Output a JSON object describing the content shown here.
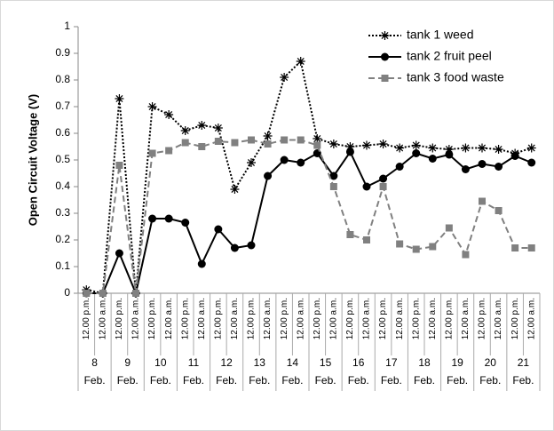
{
  "chart_data": {
    "type": "line",
    "y_label": "Open Circuit Voltage (V)",
    "categories": [
      "12.00 p.m.",
      "12.00 a.m.",
      "12.00 p.m.",
      "12.00 a.m.",
      "12.00 p.m.",
      "12.00 a.m.",
      "12.00 p.m.",
      "12.00 a.m.",
      "12.00 p.m.",
      "12.00 a.m.",
      "12.00 p.m.",
      "12.00 a.m.",
      "12.00 p.m.",
      "12.00 a.m.",
      "12.00 p.m.",
      "12.00 a.m.",
      "12.00 p.m.",
      "12.00 a.m.",
      "12.00 p.m.",
      "12.00 a.m.",
      "12.00 p.m.",
      "12.00 a.m.",
      "12.00 p.m.",
      "12.00 a.m.",
      "12.00 p.m.",
      "12.00 a.m.",
      "12.00 p.m.",
      "12.00 a.m."
    ],
    "groups": [
      {
        "day": "8",
        "month": "Feb."
      },
      {
        "day": "9",
        "month": "Feb."
      },
      {
        "day": "10",
        "month": "Feb."
      },
      {
        "day": "11",
        "month": "Feb."
      },
      {
        "day": "12",
        "month": "Feb."
      },
      {
        "day": "13",
        "month": "Feb."
      },
      {
        "day": "14",
        "month": "Feb."
      },
      {
        "day": "15",
        "month": "Feb."
      },
      {
        "day": "16",
        "month": "Feb."
      },
      {
        "day": "17",
        "month": "Feb."
      },
      {
        "day": "18",
        "month": "Feb."
      },
      {
        "day": "19",
        "month": "Feb."
      },
      {
        "day": "20",
        "month": "Feb."
      },
      {
        "day": "21",
        "month": "Feb."
      }
    ],
    "series": [
      {
        "name": "tank 1  weed",
        "color": "#000000",
        "dash": "dotted",
        "marker": "asterisk",
        "values": [
          0.013,
          0,
          0.73,
          0,
          0.7,
          0.67,
          0.61,
          0.63,
          0.62,
          0.39,
          0.49,
          0.59,
          0.81,
          0.87,
          0.58,
          0.56,
          0.55,
          0.555,
          0.56,
          0.545,
          0.555,
          0.545,
          0.54,
          0.545,
          0.545,
          0.54,
          0.525,
          0.545
        ]
      },
      {
        "name": "tank 2 fruit peel",
        "color": "#000000",
        "dash": "solid",
        "marker": "circle",
        "values": [
          0,
          0,
          0.15,
          0,
          0.28,
          0.28,
          0.265,
          0.11,
          0.24,
          0.17,
          0.18,
          0.44,
          0.5,
          0.49,
          0.525,
          0.44,
          0.53,
          0.4,
          0.43,
          0.475,
          0.525,
          0.505,
          0.52,
          0.465,
          0.485,
          0.475,
          0.515,
          0.49
        ]
      },
      {
        "name": "tank 3 food waste",
        "color": "#808080",
        "dash": "dashed",
        "marker": "square",
        "values": [
          0,
          0,
          0.48,
          0,
          0.525,
          0.535,
          0.565,
          0.55,
          0.57,
          0.565,
          0.575,
          0.56,
          0.575,
          0.575,
          0.555,
          0.4,
          0.22,
          0.2,
          0.4,
          0.185,
          0.165,
          0.175,
          0.245,
          0.145,
          0.345,
          0.31,
          0.17,
          0.17
        ]
      }
    ],
    "ylim": [
      0,
      1
    ],
    "yticks": [
      0,
      0.1,
      0.2,
      0.3,
      0.4,
      0.5,
      0.6,
      0.7,
      0.8,
      0.9,
      1
    ],
    "legend": "top-right"
  }
}
